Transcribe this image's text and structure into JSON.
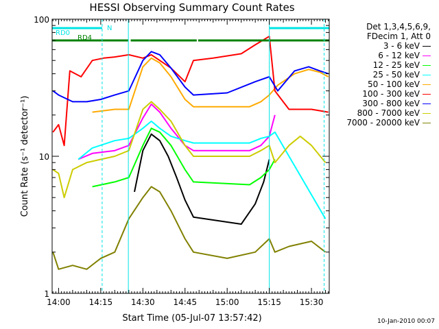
{
  "chart_data": {
    "type": "line",
    "title": "HESSI Observing Summary Count Rates",
    "xlabel": "Start Time (05-Jul-07 13:57:42)",
    "ylabel": "Count Rate (s⁻¹ detector⁻¹)",
    "y_scale": "log",
    "ylim": [
      1,
      100
    ],
    "xlim": [
      "13:57:42",
      "15:36:20"
    ],
    "x_ticks": [
      "14:00",
      "14:15",
      "14:30",
      "14:45",
      "15:00",
      "15:15",
      "15:30"
    ],
    "y_tick_labels": [
      "1",
      "10",
      "100"
    ],
    "legend_header": [
      "Det 1,3,4,5,6,9,",
      "FDecim 1, Att 0"
    ],
    "series": [
      {
        "name": "3 - 6 keV",
        "color": "#000000",
        "points": [
          [
            "14:27",
            5.5
          ],
          [
            "14:30",
            11
          ],
          [
            "14:33",
            14.5
          ],
          [
            "14:36",
            13
          ],
          [
            "14:39",
            10
          ],
          [
            "14:42",
            7
          ],
          [
            "14:45",
            4.8
          ],
          [
            "14:48",
            3.6
          ],
          [
            "15:05",
            3.2
          ],
          [
            "15:10",
            4.5
          ],
          [
            "15:13",
            6.5
          ],
          [
            "15:15",
            9.5
          ]
        ]
      },
      {
        "name": "6 - 12 keV",
        "color": "#ff00ff",
        "points": [
          [
            "14:07",
            9.5
          ],
          [
            "14:12",
            10.5
          ],
          [
            "14:20",
            11
          ],
          [
            "14:25",
            12
          ],
          [
            "14:30",
            19
          ],
          [
            "14:33",
            24
          ],
          [
            "14:36",
            21
          ],
          [
            "14:40",
            16
          ],
          [
            "14:45",
            12
          ],
          [
            "14:48",
            11
          ],
          [
            "15:08",
            11
          ],
          [
            "15:12",
            12
          ],
          [
            "15:15",
            14
          ],
          [
            "15:17",
            20
          ]
        ]
      },
      {
        "name": "12 - 25 keV",
        "color": "#00ff00",
        "points": [
          [
            "14:12",
            6
          ],
          [
            "14:20",
            6.5
          ],
          [
            "14:25",
            7
          ],
          [
            "14:30",
            12
          ],
          [
            "14:33",
            16
          ],
          [
            "14:36",
            15
          ],
          [
            "14:40",
            12
          ],
          [
            "14:45",
            8
          ],
          [
            "14:48",
            6.5
          ],
          [
            "15:08",
            6.2
          ],
          [
            "15:12",
            7
          ],
          [
            "15:15",
            8
          ],
          [
            "15:17",
            9.5
          ]
        ]
      },
      {
        "name": "25 - 50 keV",
        "color": "#00ffff",
        "points": [
          [
            "14:07",
            9.5
          ],
          [
            "14:12",
            11.5
          ],
          [
            "14:20",
            13
          ],
          [
            "14:25",
            13.5
          ],
          [
            "14:30",
            16
          ],
          [
            "14:33",
            18
          ],
          [
            "14:36",
            16
          ],
          [
            "14:40",
            14
          ],
          [
            "14:45",
            13
          ],
          [
            "14:48",
            12.5
          ],
          [
            "15:08",
            12.5
          ],
          [
            "15:12",
            13.5
          ],
          [
            "15:15",
            14
          ],
          [
            "15:17",
            15
          ],
          [
            "15:35",
            3.5
          ]
        ]
      },
      {
        "name": "50 - 100 keV",
        "color": "#ffaa00",
        "points": [
          [
            "14:12",
            21
          ],
          [
            "14:20",
            22
          ],
          [
            "14:25",
            22
          ],
          [
            "14:30",
            45
          ],
          [
            "14:33",
            52
          ],
          [
            "14:36",
            48
          ],
          [
            "14:40",
            38
          ],
          [
            "14:45",
            26
          ],
          [
            "14:48",
            23
          ],
          [
            "15:08",
            23
          ],
          [
            "15:12",
            25
          ],
          [
            "15:15",
            28
          ],
          [
            "15:18",
            33
          ],
          [
            "15:24",
            40
          ],
          [
            "15:29",
            43
          ],
          [
            "15:33",
            41
          ],
          [
            "15:36",
            38
          ]
        ]
      },
      {
        "name": "100 - 300 keV",
        "color": "#ff0000",
        "points": [
          [
            "13:58",
            15
          ],
          [
            "14:00",
            17
          ],
          [
            "14:02",
            12
          ],
          [
            "14:04",
            42
          ],
          [
            "14:08",
            38
          ],
          [
            "14:12",
            50
          ],
          [
            "14:16",
            52
          ],
          [
            "14:20",
            53
          ],
          [
            "14:25",
            55
          ],
          [
            "14:30",
            52
          ],
          [
            "14:33",
            55
          ],
          [
            "14:36",
            50
          ],
          [
            "14:40",
            44
          ],
          [
            "14:45",
            35
          ],
          [
            "14:48",
            50
          ],
          [
            "14:55",
            52
          ],
          [
            "15:05",
            56
          ],
          [
            "15:10",
            65
          ],
          [
            "15:15",
            75
          ],
          [
            "15:17",
            30
          ],
          [
            "15:22",
            22
          ],
          [
            "15:30",
            22
          ],
          [
            "15:36",
            21
          ]
        ]
      },
      {
        "name": "300 - 800 keV",
        "color": "#0000ff",
        "points": [
          [
            "13:58",
            30
          ],
          [
            "14:00",
            28
          ],
          [
            "14:05",
            25
          ],
          [
            "14:10",
            25
          ],
          [
            "14:15",
            26
          ],
          [
            "14:20",
            28
          ],
          [
            "14:25",
            30
          ],
          [
            "14:30",
            50
          ],
          [
            "14:33",
            58
          ],
          [
            "14:36",
            55
          ],
          [
            "14:40",
            44
          ],
          [
            "14:45",
            32
          ],
          [
            "14:48",
            28
          ],
          [
            "15:00",
            29
          ],
          [
            "15:10",
            35
          ],
          [
            "15:15",
            38
          ],
          [
            "15:18",
            30
          ],
          [
            "15:24",
            42
          ],
          [
            "15:29",
            45
          ],
          [
            "15:33",
            42
          ],
          [
            "15:36",
            40
          ]
        ]
      },
      {
        "name": "800 - 7000 keV",
        "color": "#cccc00",
        "points": [
          [
            "13:58",
            8
          ],
          [
            "14:00",
            7.5
          ],
          [
            "14:02",
            5
          ],
          [
            "14:05",
            8
          ],
          [
            "14:10",
            9
          ],
          [
            "14:15",
            9.5
          ],
          [
            "14:20",
            10
          ],
          [
            "14:25",
            11
          ],
          [
            "14:30",
            22
          ],
          [
            "14:33",
            25
          ],
          [
            "14:36",
            22
          ],
          [
            "14:40",
            18
          ],
          [
            "14:45",
            12
          ],
          [
            "14:48",
            10
          ],
          [
            "15:08",
            10
          ],
          [
            "15:12",
            11
          ],
          [
            "15:15",
            12
          ],
          [
            "15:17",
            9
          ],
          [
            "15:22",
            12
          ],
          [
            "15:26",
            14
          ],
          [
            "15:30",
            12
          ],
          [
            "15:35",
            9
          ]
        ]
      },
      {
        "name": "7000 - 20000 keV",
        "color": "#808000",
        "points": [
          [
            "13:58",
            2
          ],
          [
            "14:00",
            1.5
          ],
          [
            "14:05",
            1.6
          ],
          [
            "14:10",
            1.5
          ],
          [
            "14:15",
            1.8
          ],
          [
            "14:20",
            2
          ],
          [
            "14:25",
            3.5
          ],
          [
            "14:30",
            5
          ],
          [
            "14:33",
            6
          ],
          [
            "14:36",
            5.5
          ],
          [
            "14:40",
            4
          ],
          [
            "14:45",
            2.5
          ],
          [
            "14:48",
            2
          ],
          [
            "15:00",
            1.8
          ],
          [
            "15:10",
            2
          ],
          [
            "15:15",
            2.5
          ],
          [
            "15:17",
            2
          ],
          [
            "15:22",
            2.2
          ],
          [
            "15:30",
            2.4
          ],
          [
            "15:35",
            2
          ]
        ]
      }
    ],
    "bars": [
      {
        "name": "RD0",
        "color": "#00e5e5",
        "segments": [
          [
            "13:57:42",
            "14:15:30"
          ],
          [
            "15:15:00",
            "15:36:20"
          ]
        ]
      },
      {
        "name": "RD4",
        "color": "#008000",
        "segments": [
          [
            "13:57:42",
            "14:24:50"
          ],
          [
            "14:25:40",
            "14:49:10"
          ],
          [
            "14:49:40",
            "15:15:00"
          ],
          [
            "15:15:00",
            "15:36:20"
          ]
        ]
      }
    ],
    "bar_annotation": "N",
    "vlines": [
      {
        "time": "14:15:30",
        "style": "dashed",
        "color": "#00e5e5"
      },
      {
        "time": "14:24:50",
        "style": "solid",
        "color": "#00e5e5"
      },
      {
        "time": "15:15:00",
        "style": "solid",
        "color": "#00e5e5"
      },
      {
        "time": "15:34:30",
        "style": "dashed",
        "color": "#00e5e5"
      }
    ]
  },
  "footer": {
    "timestamp": "10-Jan-2010 00:07"
  }
}
